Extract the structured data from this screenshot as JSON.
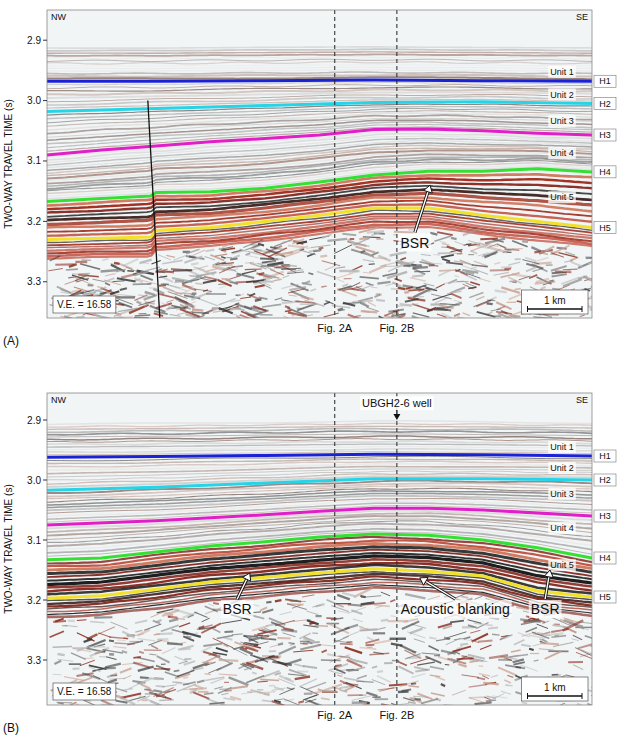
{
  "chart_data": [
    {
      "type": "seismic_section",
      "panel": "(A)",
      "direction_labels": [
        "NW",
        "SE"
      ],
      "y_label": "TWO-WAY TRAVEL TIME (s)",
      "xlim": [
        0,
        10
      ],
      "ylim": [
        2.85,
        3.36
      ],
      "yticks": [
        2.9,
        {
          "value": 3,
          "label": "3.0"
        },
        3.1,
        3.2,
        3.3
      ],
      "tick_labels": "y",
      "series": [
        {
          "name": "H1",
          "color": "#1b22d6",
          "x": [
            0,
            2,
            4,
            6,
            8,
            10
          ],
          "values": [
            2.968,
            2.968,
            2.967,
            2.966,
            2.967,
            2.968
          ]
        },
        {
          "name": "H2",
          "color": "#26d4e8",
          "x": [
            0,
            2,
            4,
            6,
            8,
            10
          ],
          "values": [
            3.018,
            3.013,
            3.008,
            3.003,
            3.002,
            3.005
          ]
        },
        {
          "name": "H3",
          "color": "#e01fc8",
          "x": [
            0,
            1,
            2,
            3,
            4,
            5,
            6,
            7,
            8,
            9,
            10
          ],
          "values": [
            3.09,
            3.082,
            3.075,
            3.068,
            3.063,
            3.057,
            3.048,
            3.047,
            3.05,
            3.054,
            3.057
          ]
        },
        {
          "name": "H4",
          "color": "#35e034",
          "x": [
            0,
            1,
            1.9,
            2,
            3,
            4,
            5,
            6,
            7,
            8,
            9,
            10
          ],
          "values": [
            3.167,
            3.162,
            3.158,
            3.152,
            3.151,
            3.145,
            3.135,
            3.123,
            3.117,
            3.117,
            3.113,
            3.118
          ]
        },
        {
          "name": "H5",
          "color": "#f3e02a",
          "x": [
            0,
            1,
            1.9,
            2,
            3,
            4,
            5,
            6,
            7,
            8,
            9,
            10
          ],
          "values": [
            3.23,
            3.228,
            3.226,
            3.215,
            3.21,
            3.2,
            3.19,
            3.178,
            3.178,
            3.19,
            3.2,
            3.21
          ]
        }
      ],
      "faults": [
        {
          "x": [
            1.85,
            2.07
          ],
          "y": [
            3.0,
            3.36
          ]
        }
      ],
      "units": [
        {
          "text": "Unit 1",
          "x": 9.45,
          "y": 2.952
        },
        {
          "text": "Unit 2",
          "x": 9.45,
          "y": 2.99
        },
        {
          "text": "Unit 3",
          "x": 9.45,
          "y": 3.034
        },
        {
          "text": "Unit 4",
          "x": 9.45,
          "y": 3.087
        },
        {
          "text": "Unit 5",
          "x": 9.45,
          "y": 3.16
        }
      ],
      "annotations": [
        {
          "text": "BSR",
          "x": 6.75,
          "y": 3.235,
          "arrow_x": 7.03,
          "arrow_y": 3.14
        }
      ],
      "sections": [
        {
          "label": "Fig. 2A",
          "x": 5.28
        },
        {
          "label": "Fig. 2B",
          "x": 6.42
        }
      ],
      "scale_bar": {
        "length": 1,
        "label": "1 km"
      },
      "ve_label": "V.E. = 16.58"
    },
    {
      "type": "seismic_section",
      "panel": "(B)",
      "direction_labels": [
        "NW",
        "SE"
      ],
      "y_label": "TWO-WAY TRAVEL TIME (s)",
      "xlim": [
        0,
        10
      ],
      "ylim": [
        2.855,
        3.375
      ],
      "yticks": [
        2.9,
        {
          "value": 3,
          "label": "3.0"
        },
        3.1,
        3.2,
        3.3
      ],
      "tick_labels": "y",
      "series": [
        {
          "name": "H1",
          "color": "#1b22d6",
          "x": [
            0,
            2,
            4,
            6,
            8,
            10
          ],
          "values": [
            2.962,
            2.961,
            2.959,
            2.957,
            2.958,
            2.96
          ]
        },
        {
          "name": "H2",
          "color": "#26d4e8",
          "x": [
            0,
            2,
            4,
            6,
            8,
            10
          ],
          "values": [
            3.017,
            3.012,
            3.005,
            2.998,
            2.998,
            3.0
          ]
        },
        {
          "name": "H3",
          "color": "#e01fc8",
          "x": [
            0,
            2,
            4,
            5,
            6,
            7,
            8,
            10
          ],
          "values": [
            3.075,
            3.068,
            3.058,
            3.052,
            3.047,
            3.047,
            3.05,
            3.06
          ]
        },
        {
          "name": "H4",
          "color": "#35e034",
          "x": [
            0,
            1,
            2,
            3,
            4,
            5,
            6,
            7,
            8,
            9,
            10
          ],
          "values": [
            3.133,
            3.13,
            3.12,
            3.11,
            3.103,
            3.095,
            3.09,
            3.092,
            3.1,
            3.113,
            3.13
          ]
        },
        {
          "name": "H5",
          "color": "#f3e02a",
          "x": [
            0,
            1,
            2,
            3,
            4,
            5,
            6,
            7,
            8,
            9,
            10
          ],
          "values": [
            3.197,
            3.193,
            3.182,
            3.17,
            3.162,
            3.155,
            3.148,
            3.152,
            3.16,
            3.185,
            3.195
          ]
        }
      ],
      "units": [
        {
          "text": "Unit 1",
          "x": 9.45,
          "y": 2.945
        },
        {
          "text": "Unit 2",
          "x": 9.45,
          "y": 2.98
        },
        {
          "text": "Unit 3",
          "x": 9.45,
          "y": 3.023
        },
        {
          "text": "Unit 4",
          "x": 9.45,
          "y": 3.08
        },
        {
          "text": "Unit 5",
          "x": 9.45,
          "y": 3.142
        }
      ],
      "annotations": [
        {
          "text": "BSR",
          "x": 3.49,
          "y": 3.215,
          "arrow_x": 3.72,
          "arrow_y": 3.155
        },
        {
          "text": "Acoustic blanking",
          "x": 7.49,
          "y": 3.215,
          "arrow_x": 6.84,
          "arrow_y": 3.163
        },
        {
          "text": "BSR",
          "x": 9.14,
          "y": 3.215,
          "arrow_x": 9.23,
          "arrow_y": 3.15
        }
      ],
      "well": {
        "text": "UBGH2-6 well",
        "x": 6.42,
        "y": 2.872,
        "arrow_y": 2.9
      },
      "sections": [
        {
          "label": "Fig. 2A",
          "x": 5.28
        },
        {
          "label": "Fig. 2B",
          "x": 6.42
        }
      ],
      "scale_bar": {
        "length": 1,
        "label": "1 km"
      },
      "ve_label": "V.E. = 16.58"
    }
  ]
}
